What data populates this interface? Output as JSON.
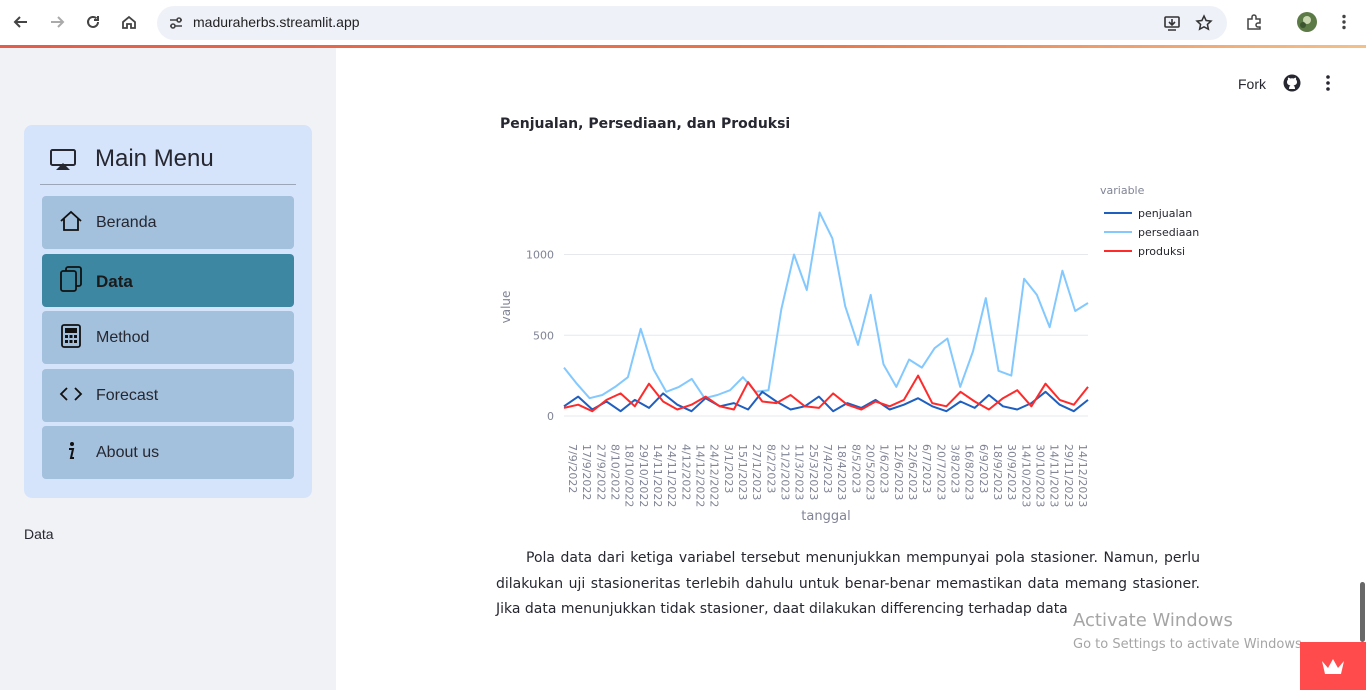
{
  "browser": {
    "url": "maduraherbs.streamlit.app",
    "icons": [
      "back-icon",
      "forward-icon",
      "reload-icon",
      "home-icon",
      "site-settings-icon",
      "install-icon",
      "bookmark-star-icon",
      "extensions-icon",
      "profile-avatar",
      "chrome-menu-icon"
    ]
  },
  "sidebar": {
    "menu_title": "Main Menu",
    "items": [
      {
        "label": "Beranda",
        "icon": "house-icon"
      },
      {
        "label": "Data",
        "icon": "files-icon",
        "active": true
      },
      {
        "label": "Method",
        "icon": "calculator-icon"
      },
      {
        "label": "Forecast",
        "icon": "code-icon"
      },
      {
        "label": "About us",
        "icon": "info-icon"
      }
    ],
    "caption": "Data"
  },
  "toolbar": {
    "fork_label": "Fork"
  },
  "main": {
    "chart_title": "Penjualan, Persediaan, dan Produksi",
    "paragraph": "Pola data dari ketiga variabel tersebut menunjukkan mempunyai pola stasioner. Namun, perlu dilakukan uji stasioneritas terlebih dahulu untuk benar-benar memastikan data memang stasioner. Jika data menunjukkan tidak stasioner, daat dilakukan differencing terhadap data"
  },
  "watermark": {
    "line1": "Activate Windows",
    "line2": "Go to Settings to activate Windows."
  },
  "colors": {
    "penjualan": "#1f5fbf",
    "persediaan": "#83c9ff",
    "produksi": "#ff2b2b",
    "accent": "#3e87a3"
  },
  "chart_data": {
    "type": "line",
    "title": "",
    "xlabel": "tanggal",
    "ylabel": "value",
    "legend_title": "variable",
    "legend_position": "top-right",
    "ylim": [
      0,
      1350
    ],
    "yticks": [
      0,
      500,
      1000
    ],
    "xticks": [
      "7/9/2022",
      "17/9/2022",
      "27/9/2022",
      "8/10/2022",
      "18/10/2022",
      "29/10/2022",
      "14/11/2022",
      "24/11/2022",
      "4/12/2022",
      "14/12/2022",
      "24/12/2022",
      "3/1/2023",
      "15/1/2023",
      "27/1/2023",
      "8/2/2023",
      "21/2/2023",
      "11/3/2023",
      "25/3/2023",
      "7/4/2023",
      "18/4/2023",
      "8/5/2023",
      "20/5/2023",
      "1/6/2023",
      "12/6/2023",
      "22/6/2023",
      "6/7/2023",
      "20/7/2023",
      "3/8/2023",
      "16/8/2023",
      "6/9/2023",
      "18/9/2023",
      "30/9/2023",
      "14/10/2023",
      "30/10/2023",
      "14/11/2023",
      "29/11/2023",
      "14/12/2023"
    ],
    "series": [
      {
        "name": "penjualan",
        "values": [
          60,
          120,
          40,
          90,
          30,
          100,
          50,
          140,
          70,
          30,
          110,
          60,
          80,
          40,
          150,
          90,
          40,
          60,
          120,
          30,
          80,
          50,
          100,
          40,
          70,
          110,
          60,
          30,
          90,
          50,
          130,
          60,
          40,
          80,
          150,
          70,
          30,
          100
        ]
      },
      {
        "name": "persediaan",
        "values": [
          300,
          200,
          110,
          130,
          180,
          240,
          540,
          290,
          150,
          180,
          230,
          110,
          130,
          160,
          240,
          150,
          160,
          660,
          1000,
          780,
          1260,
          1100,
          680,
          440,
          750,
          320,
          180,
          350,
          300,
          420,
          480,
          180,
          400,
          730,
          280,
          250,
          850,
          750,
          550,
          900,
          650,
          700
        ]
      },
      {
        "name": "produksi",
        "values": [
          50,
          70,
          30,
          100,
          140,
          60,
          200,
          90,
          40,
          70,
          120,
          60,
          40,
          210,
          90,
          80,
          130,
          60,
          50,
          140,
          70,
          40,
          90,
          60,
          100,
          250,
          80,
          60,
          150,
          90,
          40,
          110,
          160,
          60,
          200,
          100,
          70,
          180
        ]
      }
    ]
  }
}
